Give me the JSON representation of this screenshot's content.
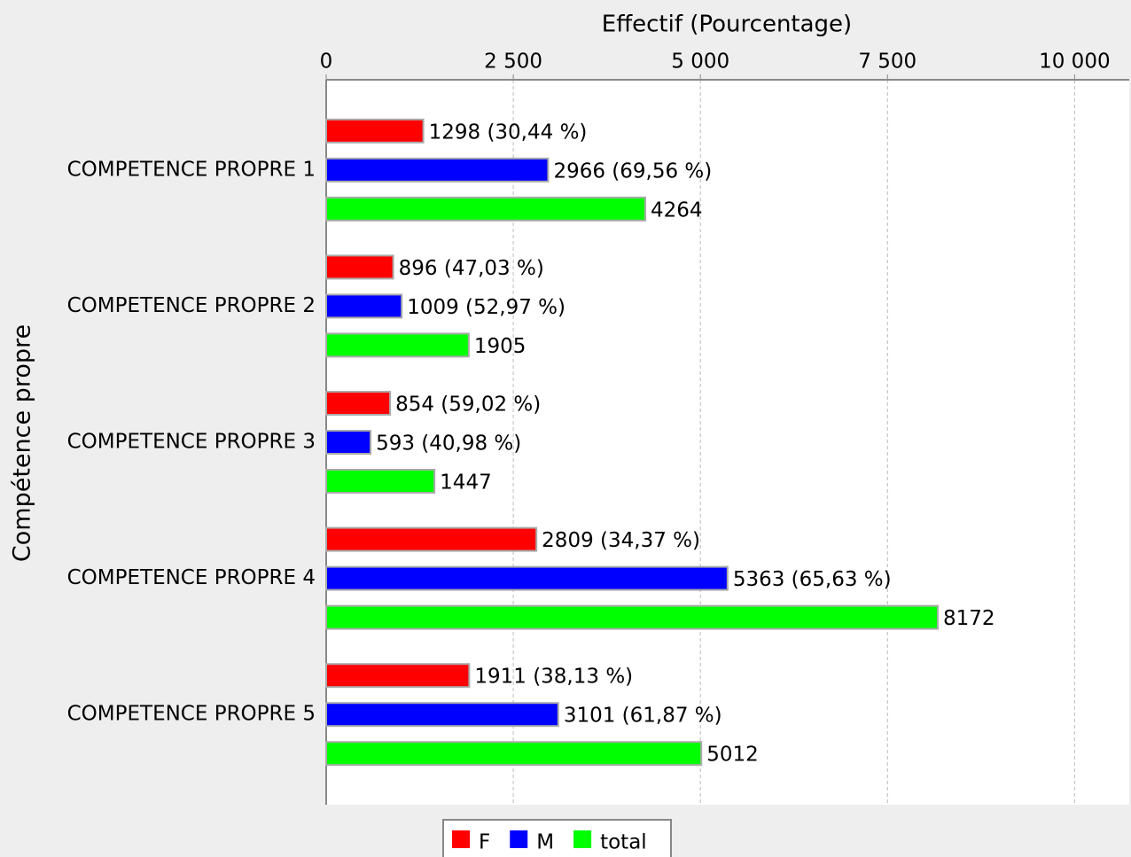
{
  "chart_data": {
    "type": "bar",
    "orientation": "horizontal",
    "title": "Effectif (Pourcentage)",
    "y_label": "Compétence propre",
    "categories": [
      "COMPETENCE PROPRE 1",
      "COMPETENCE PROPRE 2",
      "COMPETENCE PROPRE 3",
      "COMPETENCE PROPRE 4",
      "COMPETENCE PROPRE 5"
    ],
    "series": [
      {
        "name": "F",
        "color": "#ff0000",
        "values": [
          1298,
          896,
          854,
          2809,
          1911
        ],
        "value_labels": [
          "1298 (30,44 %)",
          "896 (47,03 %)",
          "854 (59,02 %)",
          "2809 (34,37 %)",
          "1911 (38,13 %)"
        ]
      },
      {
        "name": "M",
        "color": "#0000ff",
        "values": [
          2966,
          1009,
          593,
          5363,
          3101
        ],
        "value_labels": [
          "2966 (69,56 %)",
          "1009 (52,97 %)",
          "593 (40,98 %)",
          "5363 (65,63 %)",
          "3101 (61,87 %)"
        ]
      },
      {
        "name": "total",
        "color": "#00ff00",
        "values": [
          4264,
          1905,
          1447,
          8172,
          5012
        ]
      }
    ],
    "xlim": [
      0,
      10730
    ],
    "xticks": [
      0,
      {
        "value": 2500,
        "label": "2 500"
      },
      {
        "value": 5000,
        "label": "5 000"
      },
      {
        "value": 7500,
        "label": "7 500"
      },
      {
        "value": 10000,
        "label": "10 000"
      }
    ],
    "grid": true,
    "legend": "bottom"
  }
}
